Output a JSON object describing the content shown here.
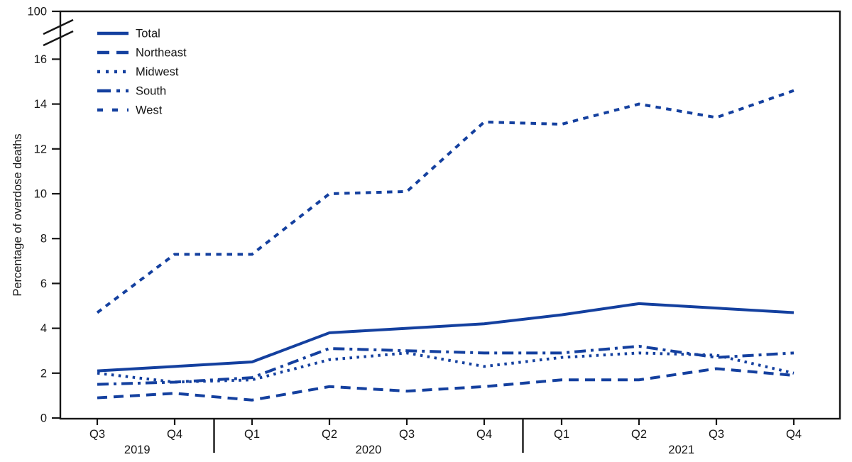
{
  "chart_data": {
    "type": "line",
    "title": "",
    "ylabel": "Percentage of overdose deaths",
    "x_categories": [
      "Q3",
      "Q4",
      "Q1",
      "Q2",
      "Q3",
      "Q4",
      "Q1",
      "Q2",
      "Q3",
      "Q4"
    ],
    "year_groups": [
      {
        "label": "2019",
        "quarters": [
          "Q3",
          "Q4"
        ]
      },
      {
        "label": "2020",
        "quarters": [
          "Q1",
          "Q2",
          "Q3",
          "Q4"
        ]
      },
      {
        "label": "2021",
        "quarters": [
          "Q1",
          "Q2",
          "Q3",
          "Q4"
        ]
      }
    ],
    "y_ticks": [
      0,
      2,
      4,
      6,
      8,
      10,
      12,
      14,
      16
    ],
    "y_axis_break_top_label": "100",
    "axis_break": true,
    "ylim": [
      0,
      17
    ],
    "grid": false,
    "legend_position": "top-left",
    "line_color": "#14409F",
    "axis_color": "#161616",
    "series": [
      {
        "name": "Total",
        "line_style": "solid",
        "values": [
          2.1,
          2.3,
          2.5,
          3.8,
          4.0,
          4.2,
          4.6,
          5.1,
          4.9,
          4.7
        ]
      },
      {
        "name": "Northeast",
        "line_style": "long-dash",
        "values": [
          0.9,
          1.1,
          0.8,
          1.4,
          1.2,
          1.4,
          1.7,
          1.7,
          2.2,
          1.9
        ]
      },
      {
        "name": "Midwest",
        "line_style": "dotted",
        "values": [
          2.0,
          1.6,
          1.7,
          2.6,
          2.9,
          2.3,
          2.7,
          2.9,
          2.8,
          2.0
        ]
      },
      {
        "name": "South",
        "line_style": "dash-dot",
        "values": [
          1.5,
          1.6,
          1.8,
          3.1,
          3.0,
          2.9,
          2.9,
          3.2,
          2.7,
          2.9
        ]
      },
      {
        "name": "West",
        "line_style": "medium-dash",
        "values": [
          4.7,
          7.3,
          7.3,
          10.0,
          10.1,
          13.2,
          13.1,
          14.0,
          13.4,
          14.6
        ]
      }
    ]
  }
}
